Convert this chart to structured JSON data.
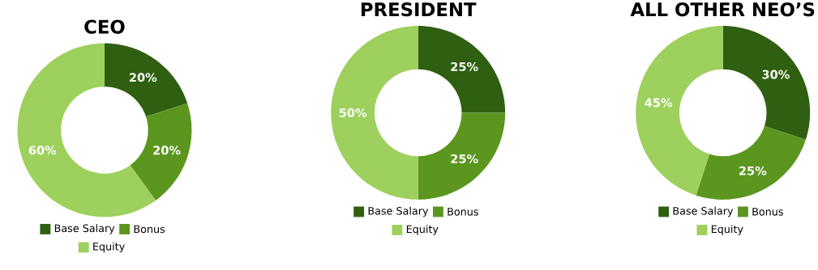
{
  "chart_data": [
    {
      "type": "donut",
      "title": "CEO",
      "categories": [
        "Base Salary",
        "Bonus",
        "Equity"
      ],
      "values": [
        20,
        20,
        60
      ],
      "value_labels": [
        "20%",
        "20%",
        "60%"
      ],
      "colors": [
        "#2f5f10",
        "#5b961f",
        "#9dd05c"
      ],
      "legend": "bottom"
    },
    {
      "type": "donut",
      "title": "PRESIDENT",
      "categories": [
        "Base Salary",
        "Bonus",
        "Equity"
      ],
      "values": [
        25,
        25,
        50
      ],
      "value_labels": [
        "25%",
        "25%",
        "50%"
      ],
      "colors": [
        "#2f5f10",
        "#5b961f",
        "#9dd05c"
      ],
      "legend": "bottom"
    },
    {
      "type": "donut",
      "title": "ALL OTHER NEO’S",
      "categories": [
        "Base Salary",
        "Bonus",
        "Equity"
      ],
      "values": [
        30,
        25,
        45
      ],
      "value_labels": [
        "30%",
        "25%",
        "45%"
      ],
      "colors": [
        "#2f5f10",
        "#5b961f",
        "#9dd05c"
      ],
      "legend": "bottom"
    }
  ]
}
